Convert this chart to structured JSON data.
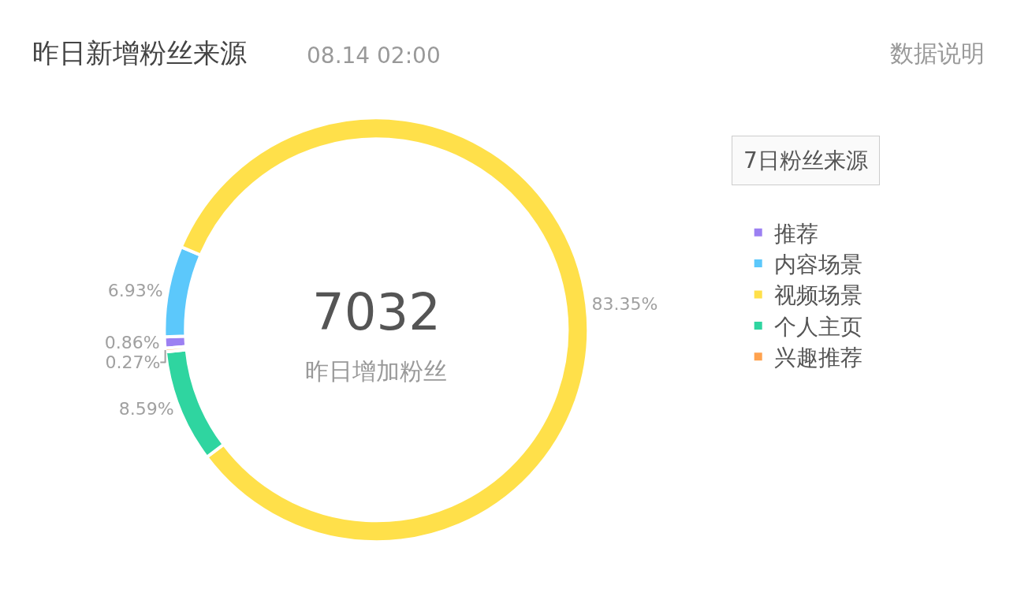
{
  "chart_data": {
    "type": "donut",
    "title": "昨日新增粉丝来源",
    "subtitle": "08.14 02:00",
    "categories": [
      "推荐",
      "内容场景",
      "视频场景",
      "个人主页",
      "兴趣推荐"
    ],
    "values": [
      0.86,
      6.93,
      83.35,
      8.59,
      0.27
    ],
    "value_labels": [
      "0.86%",
      "6.93%",
      "83.35%",
      "8.59%",
      "0.27%"
    ],
    "colors": [
      "#9c80f2",
      "#5cc8fb",
      "#ffe04a",
      "#2fd5a0",
      "#ffa24e"
    ],
    "legend": "right",
    "annotations": [
      "7032",
      "昨日增加粉丝",
      "数据说明",
      "7日粉丝来源"
    ]
  }
}
